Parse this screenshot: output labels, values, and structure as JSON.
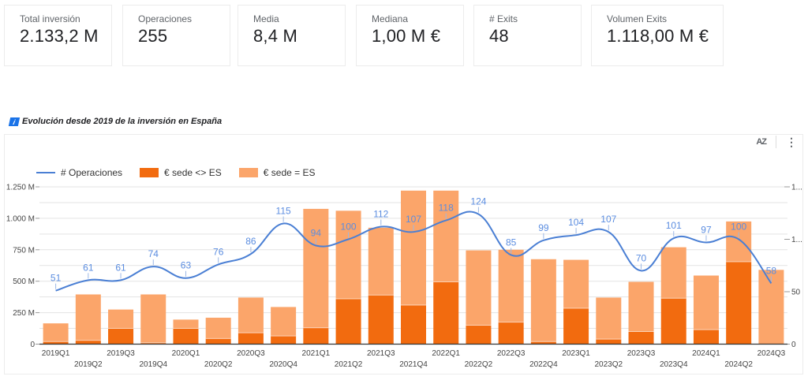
{
  "kpis": [
    {
      "label": "Total inversión",
      "value": "2.133,2 M"
    },
    {
      "label": "Operaciones",
      "value": "255"
    },
    {
      "label": "Media",
      "value": "8,4 M"
    },
    {
      "label": "Mediana",
      "value": "1,00 M €"
    },
    {
      "label": "# Exits",
      "value": "48"
    },
    {
      "label": "Volumen Exits",
      "value": "1.118,00 M €"
    }
  ],
  "chart_header": {
    "info_icon": "info-icon",
    "title": "Evolución desde 2019 de la inversión en España",
    "sort_icon": "AZ",
    "more_icon": "⋮"
  },
  "colors": {
    "line": "#4a7fd4",
    "bar_dark": "#f26b0f",
    "bar_light": "#fba56a",
    "data_label": "#5b8de0"
  },
  "chart_data": {
    "type": "bar",
    "stacked": true,
    "title": "Evolución desde 2019 de la inversión en España",
    "legend_position": "top-left",
    "legend": [
      "# Operaciones",
      "€ sede <> ES",
      "€ sede = ES"
    ],
    "categories": [
      "2019Q1",
      "2019Q2",
      "2019Q3",
      "2019Q4",
      "2020Q1",
      "2020Q2",
      "2020Q3",
      "2020Q4",
      "2021Q1",
      "2021Q2",
      "2021Q3",
      "2021Q4",
      "2022Q1",
      "2022Q2",
      "2022Q3",
      "2022Q4",
      "2023Q1",
      "2023Q2",
      "2023Q3",
      "2023Q4",
      "2024Q1",
      "2024Q2",
      "2024Q3"
    ],
    "series": [
      {
        "name": "€ sede <> ES",
        "type": "bar",
        "axis": "left",
        "unit": "M",
        "values": [
          20,
          30,
          125,
          10,
          125,
          45,
          90,
          65,
          130,
          360,
          390,
          310,
          495,
          150,
          175,
          20,
          285,
          40,
          100,
          365,
          115,
          655,
          0
        ]
      },
      {
        "name": "€ sede = ES",
        "type": "bar",
        "axis": "left",
        "unit": "M",
        "values": [
          145,
          365,
          150,
          385,
          70,
          165,
          280,
          230,
          945,
          700,
          535,
          910,
          725,
          595,
          575,
          655,
          385,
          330,
          395,
          405,
          430,
          320,
          590
        ]
      },
      {
        "name": "# Operaciones",
        "type": "line",
        "axis": "right",
        "values": [
          51,
          61,
          61,
          74,
          63,
          76,
          86,
          115,
          94,
          100,
          112,
          107,
          118,
          124,
          85,
          99,
          104,
          107,
          70,
          101,
          97,
          100,
          58
        ]
      }
    ],
    "left_axis": {
      "ticks": [
        "0",
        "250 M",
        "500 M",
        "750 M",
        "1.000 M",
        "1.250 M"
      ],
      "tick_values": [
        0,
        250,
        500,
        750,
        1000,
        1250
      ],
      "range": [
        0,
        1250
      ]
    },
    "right_axis": {
      "ticks": [
        "0",
        "50",
        "1...",
        "1..."
      ],
      "tick_values": [
        0,
        50,
        100,
        150
      ],
      "range": [
        0,
        150
      ]
    },
    "grid": true
  }
}
